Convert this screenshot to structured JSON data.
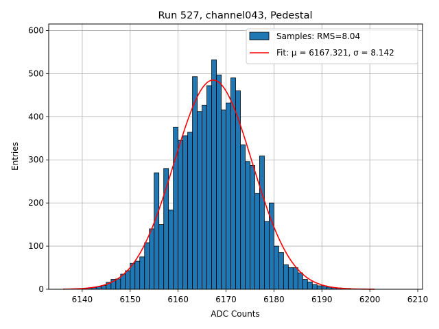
{
  "chart_data": {
    "type": "bar",
    "title": "Run 527, channel043, Pedestal",
    "xlabel": "ADC Counts",
    "ylabel": "Entries",
    "xlim": [
      6133,
      6211
    ],
    "ylim": [
      0,
      615
    ],
    "xticks": [
      6140,
      6150,
      6160,
      6170,
      6180,
      6190,
      6200,
      6210
    ],
    "yticks": [
      0,
      100,
      200,
      300,
      400,
      500,
      600
    ],
    "grid": true,
    "legend_position": "top-right",
    "colors": {
      "bar": "#1f77b4",
      "bar_edge": "#000000",
      "fit": "#ff0000",
      "grid": "#b0b0b0"
    },
    "bin_width": 1,
    "series": [
      {
        "name": "Samples: RMS=8.04",
        "kind": "histogram",
        "bins_left": [
          6138,
          6139,
          6140,
          6141,
          6142,
          6143,
          6144,
          6145,
          6146,
          6147,
          6148,
          6149,
          6150,
          6151,
          6152,
          6153,
          6154,
          6155,
          6156,
          6157,
          6158,
          6159,
          6160,
          6161,
          6162,
          6163,
          6164,
          6165,
          6166,
          6167,
          6168,
          6169,
          6170,
          6171,
          6172,
          6173,
          6174,
          6175,
          6176,
          6177,
          6178,
          6179,
          6180,
          6181,
          6182,
          6183,
          6184,
          6185,
          6186,
          6187,
          6188,
          6189,
          6190,
          6191,
          6192,
          6193,
          6194,
          6195,
          6196,
          6197,
          6198
        ],
        "values": [
          1,
          1,
          2,
          3,
          4,
          6,
          9,
          16,
          23,
          24,
          35,
          43,
          60,
          65,
          75,
          108,
          140,
          270,
          150,
          280,
          184,
          376,
          346,
          356,
          364,
          493,
          412,
          427,
          472,
          532,
          497,
          416,
          432,
          490,
          460,
          335,
          296,
          287,
          222,
          309,
          157,
          200,
          100,
          85,
          57,
          50,
          50,
          38,
          23,
          17,
          11,
          8,
          8,
          5,
          4,
          3,
          2,
          2,
          1,
          1,
          1
        ]
      },
      {
        "name": "Fit: μ = 6167.321, σ = 8.142",
        "kind": "gaussian",
        "mu": 6167.321,
        "sigma": 8.142,
        "amplitude": 485,
        "x_range": [
          6136,
          6201
        ]
      }
    ]
  }
}
